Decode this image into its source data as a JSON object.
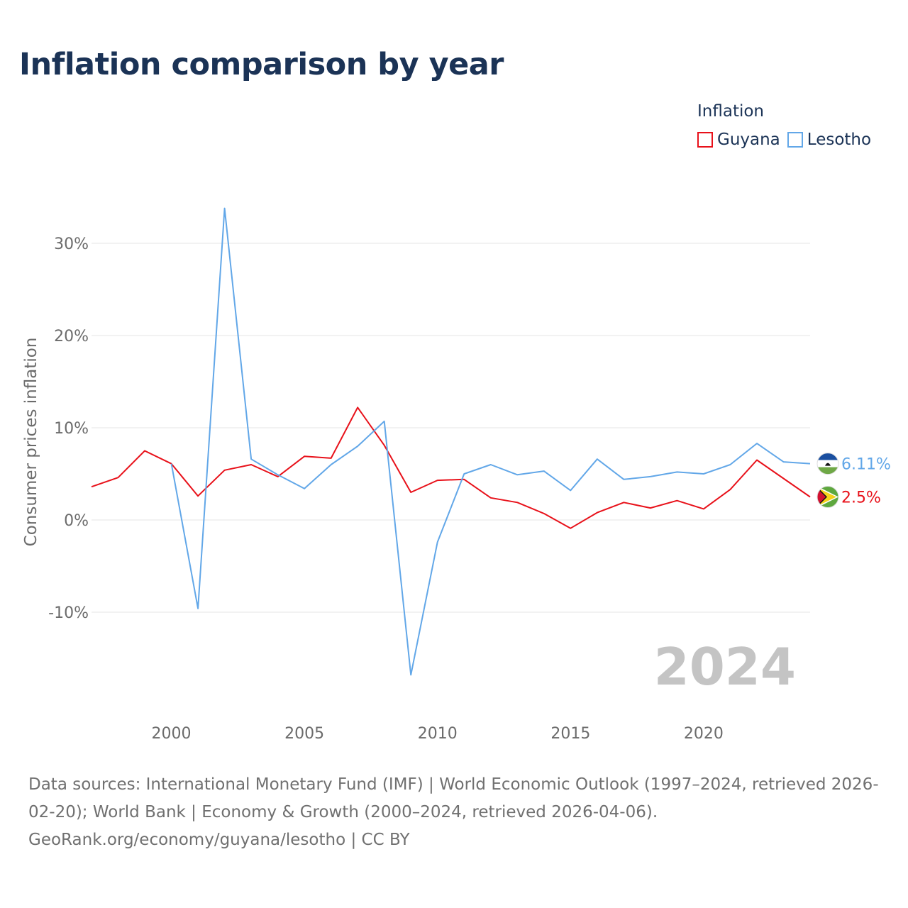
{
  "title": "Inflation comparison by year",
  "legend": {
    "title": "Inflation",
    "items": [
      {
        "label": "Guyana",
        "color": "#e8111a"
      },
      {
        "label": "Lesotho",
        "color": "#62a7e8"
      }
    ]
  },
  "chart_data": {
    "type": "line",
    "title": "Inflation comparison by year",
    "xlabel": "",
    "ylabel": "Consumer prices inflation",
    "x": [
      1997,
      1998,
      1999,
      2000,
      2001,
      2002,
      2003,
      2004,
      2005,
      2006,
      2007,
      2008,
      2009,
      2010,
      2011,
      2012,
      2013,
      2014,
      2015,
      2016,
      2017,
      2018,
      2019,
      2020,
      2021,
      2022,
      2023,
      2024
    ],
    "series": [
      {
        "name": "Guyana",
        "color": "#e8111a",
        "values": [
          3.6,
          4.6,
          7.5,
          6.1,
          2.6,
          5.4,
          6.0,
          4.7,
          6.9,
          6.7,
          12.2,
          8.1,
          3.0,
          4.3,
          4.4,
          2.4,
          1.9,
          0.7,
          -0.9,
          0.8,
          1.9,
          1.3,
          2.1,
          1.2,
          3.3,
          6.5,
          4.5,
          2.5
        ]
      },
      {
        "name": "Lesotho",
        "color": "#62a7e8",
        "values": [
          null,
          null,
          null,
          6.1,
          -9.6,
          33.8,
          6.6,
          4.9,
          3.4,
          6.0,
          8.0,
          10.7,
          -16.8,
          -2.4,
          5.0,
          6.0,
          4.9,
          5.3,
          3.2,
          6.6,
          4.4,
          4.7,
          5.2,
          5.0,
          6.0,
          8.3,
          6.3,
          6.11
        ]
      }
    ],
    "yticks": [
      -10,
      0,
      10,
      20,
      30
    ],
    "ytick_labels": [
      "-10%",
      "0%",
      "10%",
      "20%",
      "30%"
    ],
    "xticks": [
      2000,
      2005,
      2010,
      2015,
      2020
    ],
    "xtick_labels": [
      "2000",
      "2005",
      "2010",
      "2015",
      "2020"
    ],
    "xlim": [
      1997,
      2024
    ],
    "ylim": [
      -20,
      36
    ],
    "grid": true,
    "end_labels": [
      {
        "series": "Lesotho",
        "text": "6.11%",
        "flag": "lesotho-flag-icon"
      },
      {
        "series": "Guyana",
        "text": "2.5%",
        "flag": "guyana-flag-icon"
      }
    ],
    "year_watermark": "2024"
  },
  "footer": {
    "line1": "Data sources: International Monetary Fund (IMF) | World Economic Outlook (1997–2024, retrieved 2026-",
    "line2": "02-20); World Bank | Economy & Growth (2000–2024, retrieved 2026-04-06).",
    "line3": "GeoRank.org/economy/guyana/lesotho | CC BY"
  }
}
